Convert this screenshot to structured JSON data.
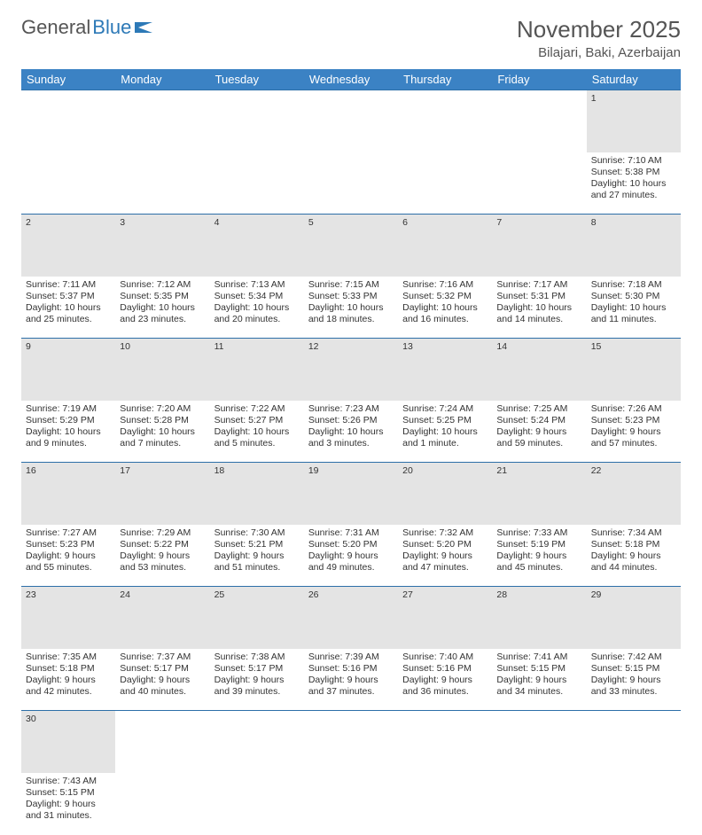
{
  "logo": {
    "part1": "General",
    "part2": "Blue"
  },
  "title": "November 2025",
  "location": "Bilajari, Baki, Azerbaijan",
  "colors": {
    "header_bg": "#3b82c4",
    "header_text": "#ffffff",
    "daynum_bg": "#e4e4e4",
    "rule": "#2d6fa8",
    "body_text": "#333333",
    "title_text": "#555555"
  },
  "day_headers": [
    "Sunday",
    "Monday",
    "Tuesday",
    "Wednesday",
    "Thursday",
    "Friday",
    "Saturday"
  ],
  "weeks": [
    {
      "nums": [
        "",
        "",
        "",
        "",
        "",
        "",
        "1"
      ],
      "cells": [
        null,
        null,
        null,
        null,
        null,
        null,
        {
          "sunrise": "Sunrise: 7:10 AM",
          "sunset": "Sunset: 5:38 PM",
          "day1": "Daylight: 10 hours",
          "day2": "and 27 minutes."
        }
      ]
    },
    {
      "nums": [
        "2",
        "3",
        "4",
        "5",
        "6",
        "7",
        "8"
      ],
      "cells": [
        {
          "sunrise": "Sunrise: 7:11 AM",
          "sunset": "Sunset: 5:37 PM",
          "day1": "Daylight: 10 hours",
          "day2": "and 25 minutes."
        },
        {
          "sunrise": "Sunrise: 7:12 AM",
          "sunset": "Sunset: 5:35 PM",
          "day1": "Daylight: 10 hours",
          "day2": "and 23 minutes."
        },
        {
          "sunrise": "Sunrise: 7:13 AM",
          "sunset": "Sunset: 5:34 PM",
          "day1": "Daylight: 10 hours",
          "day2": "and 20 minutes."
        },
        {
          "sunrise": "Sunrise: 7:15 AM",
          "sunset": "Sunset: 5:33 PM",
          "day1": "Daylight: 10 hours",
          "day2": "and 18 minutes."
        },
        {
          "sunrise": "Sunrise: 7:16 AM",
          "sunset": "Sunset: 5:32 PM",
          "day1": "Daylight: 10 hours",
          "day2": "and 16 minutes."
        },
        {
          "sunrise": "Sunrise: 7:17 AM",
          "sunset": "Sunset: 5:31 PM",
          "day1": "Daylight: 10 hours",
          "day2": "and 14 minutes."
        },
        {
          "sunrise": "Sunrise: 7:18 AM",
          "sunset": "Sunset: 5:30 PM",
          "day1": "Daylight: 10 hours",
          "day2": "and 11 minutes."
        }
      ]
    },
    {
      "nums": [
        "9",
        "10",
        "11",
        "12",
        "13",
        "14",
        "15"
      ],
      "cells": [
        {
          "sunrise": "Sunrise: 7:19 AM",
          "sunset": "Sunset: 5:29 PM",
          "day1": "Daylight: 10 hours",
          "day2": "and 9 minutes."
        },
        {
          "sunrise": "Sunrise: 7:20 AM",
          "sunset": "Sunset: 5:28 PM",
          "day1": "Daylight: 10 hours",
          "day2": "and 7 minutes."
        },
        {
          "sunrise": "Sunrise: 7:22 AM",
          "sunset": "Sunset: 5:27 PM",
          "day1": "Daylight: 10 hours",
          "day2": "and 5 minutes."
        },
        {
          "sunrise": "Sunrise: 7:23 AM",
          "sunset": "Sunset: 5:26 PM",
          "day1": "Daylight: 10 hours",
          "day2": "and 3 minutes."
        },
        {
          "sunrise": "Sunrise: 7:24 AM",
          "sunset": "Sunset: 5:25 PM",
          "day1": "Daylight: 10 hours",
          "day2": "and 1 minute."
        },
        {
          "sunrise": "Sunrise: 7:25 AM",
          "sunset": "Sunset: 5:24 PM",
          "day1": "Daylight: 9 hours",
          "day2": "and 59 minutes."
        },
        {
          "sunrise": "Sunrise: 7:26 AM",
          "sunset": "Sunset: 5:23 PM",
          "day1": "Daylight: 9 hours",
          "day2": "and 57 minutes."
        }
      ]
    },
    {
      "nums": [
        "16",
        "17",
        "18",
        "19",
        "20",
        "21",
        "22"
      ],
      "cells": [
        {
          "sunrise": "Sunrise: 7:27 AM",
          "sunset": "Sunset: 5:23 PM",
          "day1": "Daylight: 9 hours",
          "day2": "and 55 minutes."
        },
        {
          "sunrise": "Sunrise: 7:29 AM",
          "sunset": "Sunset: 5:22 PM",
          "day1": "Daylight: 9 hours",
          "day2": "and 53 minutes."
        },
        {
          "sunrise": "Sunrise: 7:30 AM",
          "sunset": "Sunset: 5:21 PM",
          "day1": "Daylight: 9 hours",
          "day2": "and 51 minutes."
        },
        {
          "sunrise": "Sunrise: 7:31 AM",
          "sunset": "Sunset: 5:20 PM",
          "day1": "Daylight: 9 hours",
          "day2": "and 49 minutes."
        },
        {
          "sunrise": "Sunrise: 7:32 AM",
          "sunset": "Sunset: 5:20 PM",
          "day1": "Daylight: 9 hours",
          "day2": "and 47 minutes."
        },
        {
          "sunrise": "Sunrise: 7:33 AM",
          "sunset": "Sunset: 5:19 PM",
          "day1": "Daylight: 9 hours",
          "day2": "and 45 minutes."
        },
        {
          "sunrise": "Sunrise: 7:34 AM",
          "sunset": "Sunset: 5:18 PM",
          "day1": "Daylight: 9 hours",
          "day2": "and 44 minutes."
        }
      ]
    },
    {
      "nums": [
        "23",
        "24",
        "25",
        "26",
        "27",
        "28",
        "29"
      ],
      "cells": [
        {
          "sunrise": "Sunrise: 7:35 AM",
          "sunset": "Sunset: 5:18 PM",
          "day1": "Daylight: 9 hours",
          "day2": "and 42 minutes."
        },
        {
          "sunrise": "Sunrise: 7:37 AM",
          "sunset": "Sunset: 5:17 PM",
          "day1": "Daylight: 9 hours",
          "day2": "and 40 minutes."
        },
        {
          "sunrise": "Sunrise: 7:38 AM",
          "sunset": "Sunset: 5:17 PM",
          "day1": "Daylight: 9 hours",
          "day2": "and 39 minutes."
        },
        {
          "sunrise": "Sunrise: 7:39 AM",
          "sunset": "Sunset: 5:16 PM",
          "day1": "Daylight: 9 hours",
          "day2": "and 37 minutes."
        },
        {
          "sunrise": "Sunrise: 7:40 AM",
          "sunset": "Sunset: 5:16 PM",
          "day1": "Daylight: 9 hours",
          "day2": "and 36 minutes."
        },
        {
          "sunrise": "Sunrise: 7:41 AM",
          "sunset": "Sunset: 5:15 PM",
          "day1": "Daylight: 9 hours",
          "day2": "and 34 minutes."
        },
        {
          "sunrise": "Sunrise: 7:42 AM",
          "sunset": "Sunset: 5:15 PM",
          "day1": "Daylight: 9 hours",
          "day2": "and 33 minutes."
        }
      ]
    },
    {
      "nums": [
        "30",
        "",
        "",
        "",
        "",
        "",
        ""
      ],
      "cells": [
        {
          "sunrise": "Sunrise: 7:43 AM",
          "sunset": "Sunset: 5:15 PM",
          "day1": "Daylight: 9 hours",
          "day2": "and 31 minutes."
        },
        null,
        null,
        null,
        null,
        null,
        null
      ]
    }
  ]
}
